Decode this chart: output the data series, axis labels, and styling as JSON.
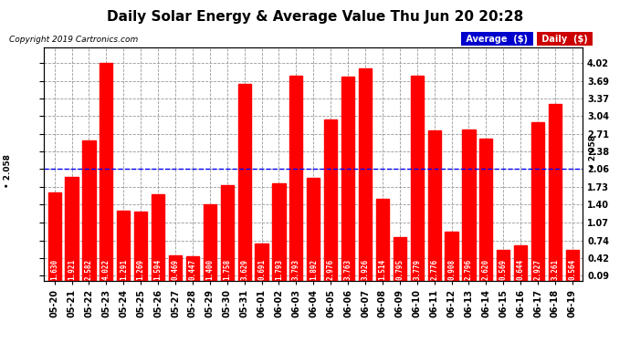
{
  "title": "Daily Solar Energy & Average Value Thu Jun 20 20:28",
  "copyright": "Copyright 2019 Cartronics.com",
  "categories": [
    "05-20",
    "05-21",
    "05-22",
    "05-23",
    "05-24",
    "05-25",
    "05-26",
    "05-27",
    "05-28",
    "05-29",
    "05-30",
    "05-31",
    "06-01",
    "06-02",
    "06-03",
    "06-04",
    "06-05",
    "06-06",
    "06-07",
    "06-08",
    "06-09",
    "06-10",
    "06-11",
    "06-12",
    "06-13",
    "06-14",
    "06-15",
    "06-16",
    "06-17",
    "06-18",
    "06-19"
  ],
  "values": [
    1.63,
    1.921,
    2.582,
    4.022,
    1.291,
    1.269,
    1.594,
    0.469,
    0.447,
    1.4,
    1.758,
    3.629,
    0.691,
    1.793,
    3.793,
    1.892,
    2.976,
    3.763,
    3.926,
    1.514,
    0.795,
    3.779,
    2.776,
    0.908,
    2.796,
    2.62,
    0.569,
    0.644,
    2.927,
    3.261,
    0.564
  ],
  "average": 2.058,
  "bar_color": "#ff0000",
  "avg_line_color": "#0000ff",
  "background_color": "#ffffff",
  "plot_bg_color": "#ffffff",
  "grid_color": "#999999",
  "yticks": [
    0.09,
    0.42,
    0.74,
    1.07,
    1.4,
    1.73,
    2.06,
    2.38,
    2.71,
    3.04,
    3.37,
    3.69,
    4.02
  ],
  "legend_avg_bg": "#0000cc",
  "legend_daily_bg": "#cc0000",
  "legend_text_color": "#ffffff",
  "title_fontsize": 11,
  "tick_fontsize": 7,
  "bar_value_fontsize": 5.5,
  "copyright_fontsize": 6.5,
  "legend_fontsize": 7
}
